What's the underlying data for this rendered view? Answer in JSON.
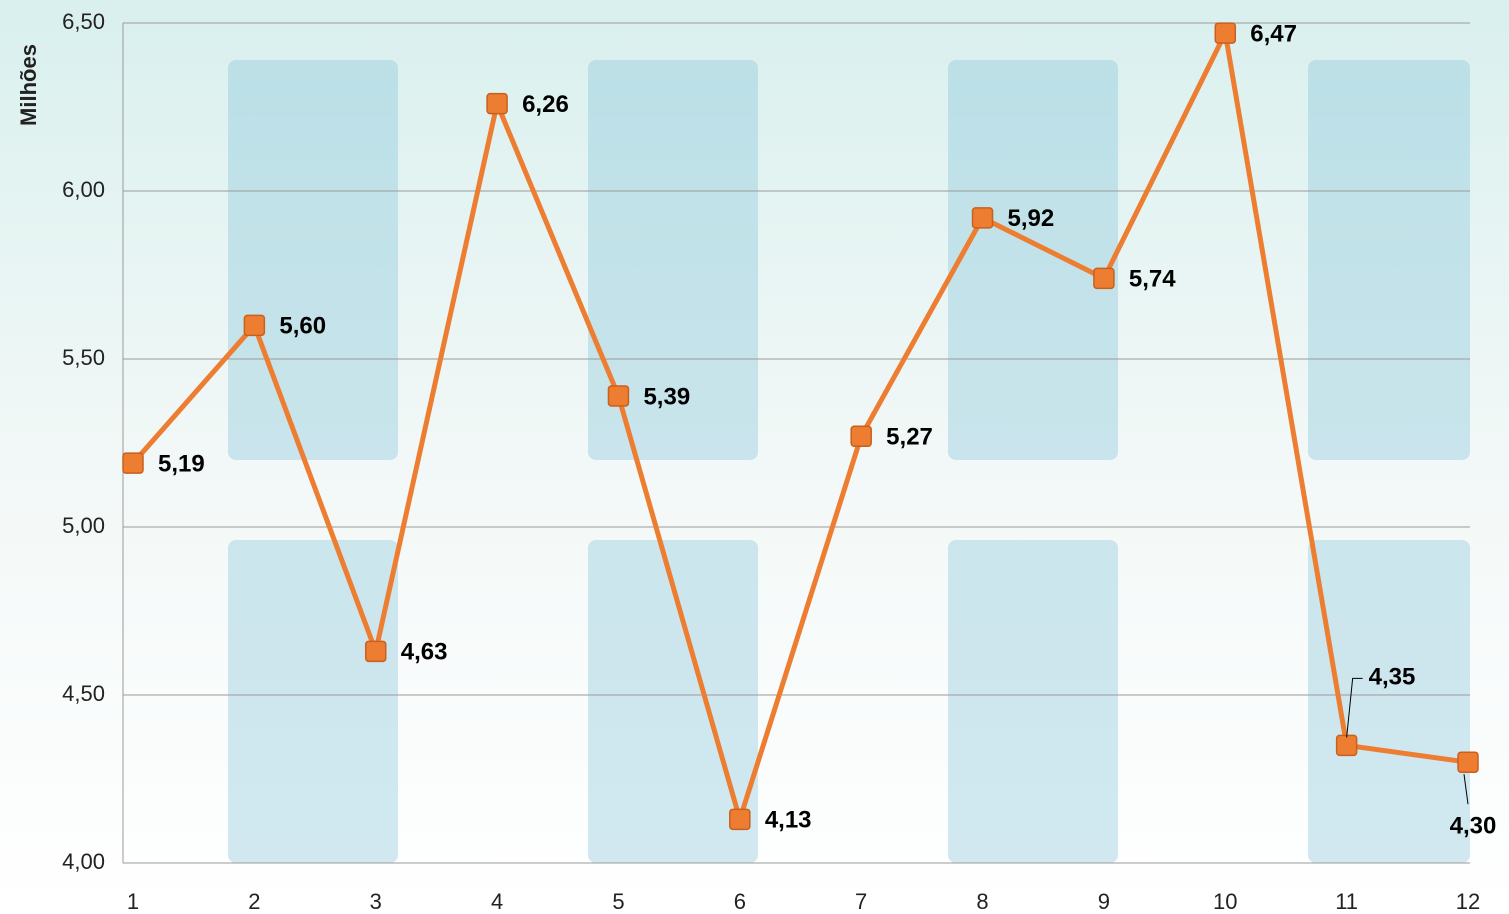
{
  "chart_data": {
    "type": "line",
    "y_axis_label": "Milhões",
    "categories": [
      "1",
      "2",
      "3",
      "4",
      "5",
      "6",
      "7",
      "8",
      "9",
      "10",
      "11",
      "12"
    ],
    "series": [
      {
        "name": "Milhões",
        "color": "#ed7d31",
        "values": [
          5.19,
          5.6,
          4.63,
          6.26,
          5.39,
          4.13,
          5.27,
          5.92,
          5.74,
          6.47,
          4.35,
          4.3
        ],
        "value_labels": [
          "5,19",
          "5,60",
          "4,63",
          "6,26",
          "5,39",
          "4,13",
          "5,27",
          "5,92",
          "5,74",
          "6,47",
          "4,35",
          "4,30"
        ]
      }
    ],
    "ylim": [
      4.0,
      6.5
    ],
    "yticks": [
      {
        "value": 4.0,
        "label": "4,00"
      },
      {
        "value": 4.5,
        "label": "4,50"
      },
      {
        "value": 5.0,
        "label": "5,00"
      },
      {
        "value": 5.5,
        "label": "5,50"
      },
      {
        "value": 6.0,
        "label": "6,00"
      },
      {
        "value": 6.5,
        "label": "6,50"
      }
    ],
    "grid": true
  }
}
